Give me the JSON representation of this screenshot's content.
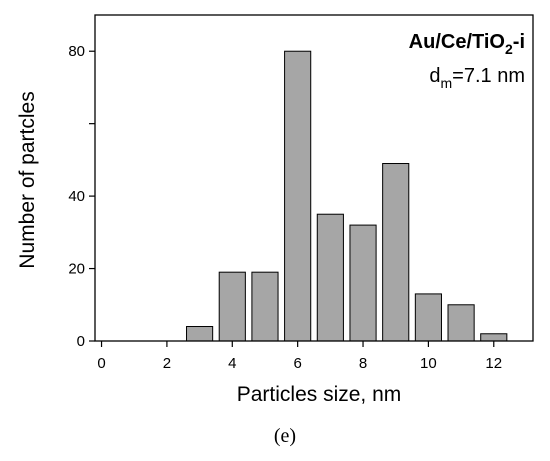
{
  "chart_data": {
    "type": "bar",
    "x": [
      3,
      4,
      5,
      6,
      7,
      8,
      9,
      10,
      11,
      12
    ],
    "values": [
      4,
      19,
      19,
      80,
      35,
      32,
      49,
      13,
      10,
      2
    ],
    "xlabel": "Particles size, nm",
    "ylabel": "Number of partcles",
    "xlim": [
      -0.2,
      13.2
    ],
    "ylim": [
      0,
      90
    ],
    "xticks": [
      0,
      2,
      4,
      6,
      8,
      10,
      12
    ],
    "yticks": [
      0,
      20,
      40,
      60,
      80
    ],
    "yticks_labeled": [
      "0",
      "20",
      "40",
      "",
      "80"
    ],
    "grid": false,
    "bar_color": "#a6a6a6",
    "bar_edge_color": "#000000",
    "annotation": {
      "sample_prefix": "Au/Ce/TiO",
      "sample_sub": "2",
      "sample_suffix": "-i",
      "dm_main": "d",
      "dm_sub": "m",
      "dm_value": "=7.1 nm"
    }
  },
  "caption": "(e)"
}
